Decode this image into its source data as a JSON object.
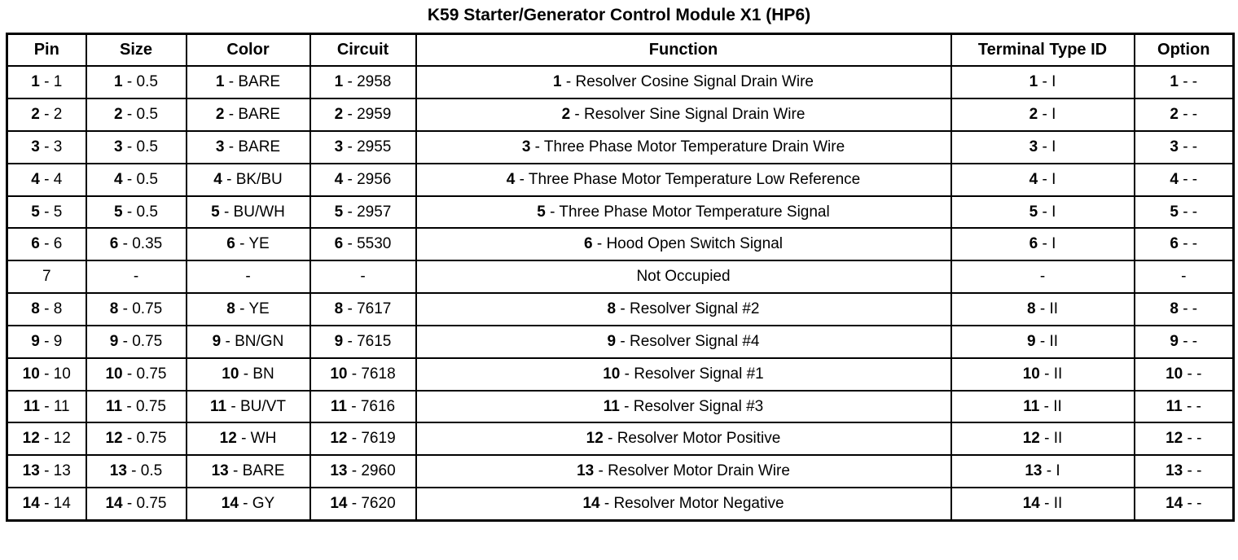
{
  "title": "K59 Starter/Generator Control Module X1 (HP6)",
  "table": {
    "columns": [
      "Pin",
      "Size",
      "Color",
      "Circuit",
      "Function",
      "Terminal Type ID",
      "Option"
    ],
    "rows": [
      {
        "cells": [
          [
            "1",
            " - 1"
          ],
          [
            "1",
            " - 0.5"
          ],
          [
            "1",
            " - BARE"
          ],
          [
            "1",
            " - 2958"
          ],
          [
            "1",
            " - Resolver Cosine Signal Drain Wire"
          ],
          [
            "1",
            " - I"
          ],
          [
            "1",
            " - -"
          ]
        ]
      },
      {
        "cells": [
          [
            "2",
            " - 2"
          ],
          [
            "2",
            " - 0.5"
          ],
          [
            "2",
            " - BARE"
          ],
          [
            "2",
            " - 2959"
          ],
          [
            "2",
            " - Resolver Sine Signal Drain Wire"
          ],
          [
            "2",
            " - I"
          ],
          [
            "2",
            " - -"
          ]
        ]
      },
      {
        "cells": [
          [
            "3",
            " - 3"
          ],
          [
            "3",
            " - 0.5"
          ],
          [
            "3",
            " - BARE"
          ],
          [
            "3",
            " - 2955"
          ],
          [
            "3",
            " - Three Phase Motor Temperature Drain Wire"
          ],
          [
            "3",
            " - I"
          ],
          [
            "3",
            " - -"
          ]
        ]
      },
      {
        "cells": [
          [
            "4",
            " - 4"
          ],
          [
            "4",
            " - 0.5"
          ],
          [
            "4",
            " - BK/BU"
          ],
          [
            "4",
            " - 2956"
          ],
          [
            "4",
            " - Three Phase Motor Temperature Low Reference"
          ],
          [
            "4",
            " - I"
          ],
          [
            "4",
            " - -"
          ]
        ]
      },
      {
        "cells": [
          [
            "5",
            " - 5"
          ],
          [
            "5",
            " - 0.5"
          ],
          [
            "5",
            " - BU/WH"
          ],
          [
            "5",
            " - 2957"
          ],
          [
            "5",
            " - Three Phase Motor Temperature Signal"
          ],
          [
            "5",
            " - I"
          ],
          [
            "5",
            " - -"
          ]
        ]
      },
      {
        "cells": [
          [
            "6",
            " - 6"
          ],
          [
            "6",
            " - 0.35"
          ],
          [
            "6",
            " - YE"
          ],
          [
            "6",
            " - 5530"
          ],
          [
            "6",
            " - Hood Open Switch Signal"
          ],
          [
            "6",
            " - I"
          ],
          [
            "6",
            " - -"
          ]
        ]
      },
      {
        "cells": [
          [
            "",
            "7"
          ],
          [
            "",
            "-"
          ],
          [
            "",
            "-"
          ],
          [
            "",
            "-"
          ],
          [
            "",
            "Not Occupied"
          ],
          [
            "",
            "-"
          ],
          [
            "",
            "-"
          ]
        ]
      },
      {
        "cells": [
          [
            "8",
            " - 8"
          ],
          [
            "8",
            " - 0.75"
          ],
          [
            "8",
            " - YE"
          ],
          [
            "8",
            " - 7617"
          ],
          [
            "8",
            " - Resolver Signal #2"
          ],
          [
            "8",
            " - II"
          ],
          [
            "8",
            " - -"
          ]
        ]
      },
      {
        "cells": [
          [
            "9",
            " - 9"
          ],
          [
            "9",
            " - 0.75"
          ],
          [
            "9",
            " - BN/GN"
          ],
          [
            "9",
            " - 7615"
          ],
          [
            "9",
            " - Resolver Signal #4"
          ],
          [
            "9",
            " - II"
          ],
          [
            "9",
            " - -"
          ]
        ]
      },
      {
        "cells": [
          [
            "10",
            " - 10"
          ],
          [
            "10",
            " - 0.75"
          ],
          [
            "10",
            " - BN"
          ],
          [
            "10",
            " - 7618"
          ],
          [
            "10",
            " - Resolver Signal #1"
          ],
          [
            "10",
            " - II"
          ],
          [
            "10",
            " - -"
          ]
        ]
      },
      {
        "cells": [
          [
            "11",
            " - 11"
          ],
          [
            "11",
            " - 0.75"
          ],
          [
            "11",
            " - BU/VT"
          ],
          [
            "11",
            " - 7616"
          ],
          [
            "11",
            " - Resolver Signal #3"
          ],
          [
            "11",
            " - II"
          ],
          [
            "11",
            " - -"
          ]
        ]
      },
      {
        "cells": [
          [
            "12",
            " - 12"
          ],
          [
            "12",
            " - 0.75"
          ],
          [
            "12",
            " - WH"
          ],
          [
            "12",
            " - 7619"
          ],
          [
            "12",
            " - Resolver Motor Positive"
          ],
          [
            "12",
            " - II"
          ],
          [
            "12",
            " - -"
          ]
        ]
      },
      {
        "cells": [
          [
            "13",
            " - 13"
          ],
          [
            "13",
            " - 0.5"
          ],
          [
            "13",
            " - BARE"
          ],
          [
            "13",
            " - 2960"
          ],
          [
            "13",
            " - Resolver Motor Drain Wire"
          ],
          [
            "13",
            " - I"
          ],
          [
            "13",
            " - -"
          ]
        ]
      },
      {
        "cells": [
          [
            "14",
            " - 14"
          ],
          [
            "14",
            " - 0.75"
          ],
          [
            "14",
            " - GY"
          ],
          [
            "14",
            " - 7620"
          ],
          [
            "14",
            " - Resolver Motor Negative"
          ],
          [
            "14",
            " - II"
          ],
          [
            "14",
            " - -"
          ]
        ]
      }
    ]
  }
}
